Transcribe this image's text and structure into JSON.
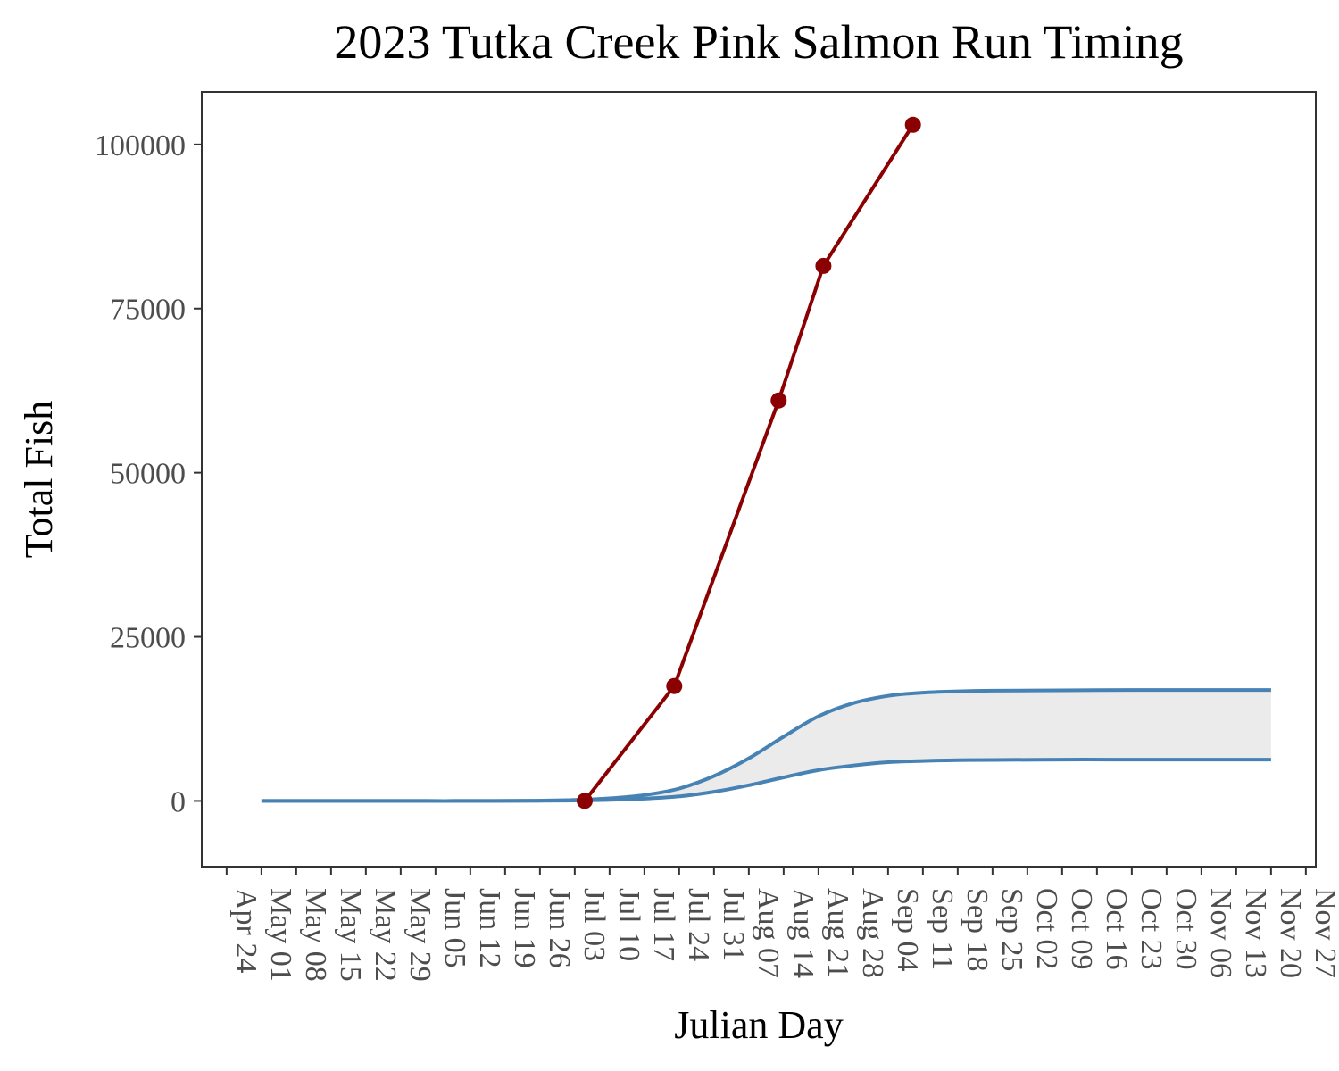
{
  "chart_data": {
    "type": "line",
    "title": "2023 Tutka Creek Pink Salmon Run Timing",
    "xlabel": "Julian Day",
    "ylabel": "Total Fish",
    "xlim": [
      "2023-04-19",
      "2023-11-29"
    ],
    "ylim": [
      -10000,
      108000
    ],
    "grid": false,
    "legend": "none",
    "x_ticks": [
      "Apr 24",
      "May 01",
      "May 08",
      "May 15",
      "May 22",
      "May 29",
      "Jun 05",
      "Jun 12",
      "Jun 19",
      "Jun 26",
      "Jul 03",
      "Jul 10",
      "Jul 17",
      "Jul 24",
      "Jul 31",
      "Aug 07",
      "Aug 14",
      "Aug 21",
      "Aug 28",
      "Sep 04",
      "Sep 11",
      "Sep 18",
      "Sep 25",
      "Oct 02",
      "Oct 09",
      "Oct 16",
      "Oct 23",
      "Oct 30",
      "Nov 06",
      "Nov 13",
      "Nov 20",
      "Nov 27"
    ],
    "x_tick_dates": [
      "2023-04-24",
      "2023-05-01",
      "2023-05-08",
      "2023-05-15",
      "2023-05-22",
      "2023-05-29",
      "2023-06-05",
      "2023-06-12",
      "2023-06-19",
      "2023-06-26",
      "2023-07-03",
      "2023-07-10",
      "2023-07-17",
      "2023-07-24",
      "2023-07-31",
      "2023-08-07",
      "2023-08-14",
      "2023-08-21",
      "2023-08-28",
      "2023-09-04",
      "2023-09-11",
      "2023-09-18",
      "2023-09-25",
      "2023-10-02",
      "2023-10-09",
      "2023-10-16",
      "2023-10-23",
      "2023-10-30",
      "2023-11-06",
      "2023-11-13",
      "2023-11-20",
      "2023-11-27"
    ],
    "y_ticks": [
      0,
      25000,
      50000,
      75000,
      100000
    ],
    "observed": {
      "color": "#8b0000",
      "x": [
        "2023-07-05",
        "2023-07-23",
        "2023-08-13",
        "2023-08-22",
        "2023-09-09"
      ],
      "y": [
        0,
        17500,
        61000,
        81500,
        103000
      ]
    },
    "band": {
      "fill": "#ebebeb",
      "line_color": "#4682b4",
      "x": [
        "2023-05-01",
        "2023-05-15",
        "2023-05-29",
        "2023-06-12",
        "2023-06-26",
        "2023-07-03",
        "2023-07-10",
        "2023-07-17",
        "2023-07-24",
        "2023-07-31",
        "2023-08-07",
        "2023-08-14",
        "2023-08-21",
        "2023-08-28",
        "2023-09-04",
        "2023-09-11",
        "2023-09-18",
        "2023-09-25",
        "2023-10-09",
        "2023-10-23",
        "2023-11-06",
        "2023-11-20"
      ],
      "upper": [
        0,
        0,
        0,
        0,
        50,
        150,
        400,
        900,
        1900,
        3800,
        6500,
        9800,
        12900,
        14900,
        16000,
        16500,
        16700,
        16800,
        16850,
        16900,
        16900,
        16900
      ],
      "lower": [
        0,
        0,
        0,
        0,
        20,
        60,
        150,
        350,
        700,
        1400,
        2400,
        3600,
        4700,
        5400,
        5900,
        6100,
        6200,
        6250,
        6300,
        6300,
        6300,
        6300
      ]
    }
  }
}
